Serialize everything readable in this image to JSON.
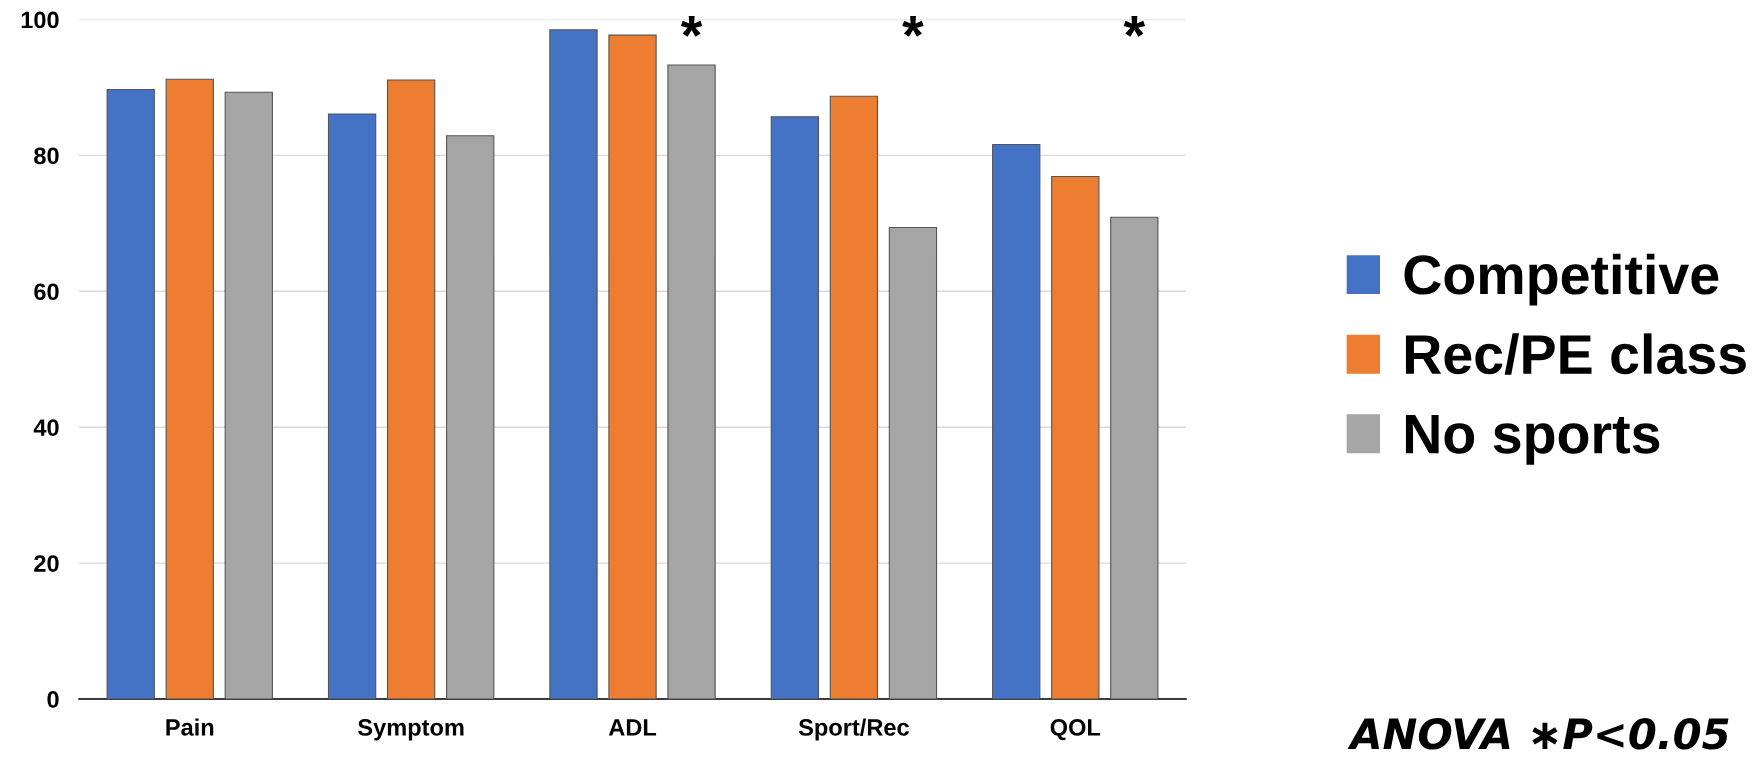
{
  "chart_data": {
    "type": "bar",
    "categories": [
      "Pain",
      "Symptom",
      "ADL",
      "Sport/Rec",
      "QOL"
    ],
    "series": [
      {
        "name": "Competitive",
        "color": "#4472c4",
        "values": [
          89.7,
          86.1,
          98.5,
          85.7,
          81.6
        ]
      },
      {
        "name": "Rec/PE class",
        "color": "#ed7d31",
        "values": [
          91.2,
          91.1,
          97.7,
          88.7,
          76.9
        ]
      },
      {
        "name": "No sports",
        "color": "#a5a5a5",
        "values": [
          89.3,
          82.9,
          93.3,
          69.4,
          70.9
        ]
      }
    ],
    "ylim": [
      0,
      100
    ],
    "yticks": [
      0,
      20,
      40,
      60,
      80,
      100
    ],
    "grid": "y",
    "legend": "right",
    "annotations": [
      "*",
      "*",
      "*",
      "ANOVA ∗P<0.05"
    ]
  }
}
